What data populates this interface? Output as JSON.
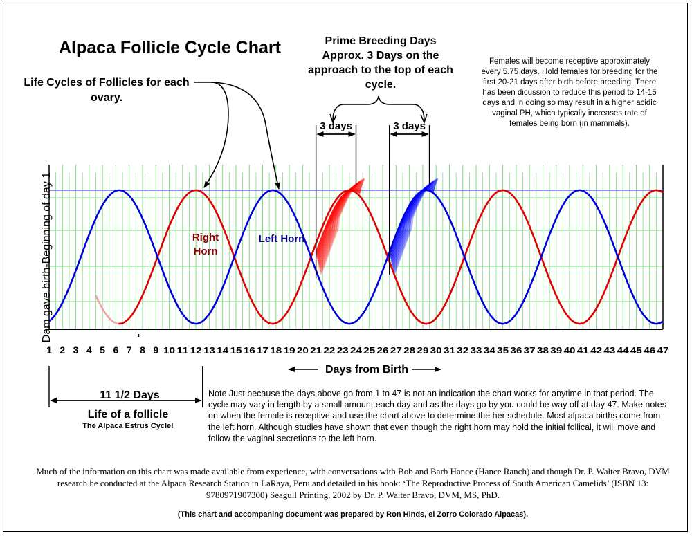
{
  "title": "Alpaca Follicle Cycle Chart",
  "annotations": {
    "life_cycles": "Life Cycles of Follicles for each ovary.",
    "prime_breeding": "Prime Breeding Days Approx. 3 Days on the approach to the top of each cycle.",
    "three_days": "3 days",
    "females_note": "Females will become receptive approximately every 5.75 days. Hold females for breeding for the first 20-21 days after birth before breeding. There has been dicussion to reduce this period to 14-15 days and in doing so may result in a higher acidic vaginal PH, which typically increases rate of females being born (in mammals).",
    "eleven_half_days": "11 1/2 Days",
    "life_of_follicle": "Life of a follicle",
    "estrus_cycle": "The Alpaca Estrus Cycle!",
    "note": "Note Just because the days above go from 1 to 47 is not an indication the chart works for anytime in that period. The cycle may vary in length by a small amount each day and as the days go by you could be way off at day 47. Make notes on when the female is receptive and use the chart above to determine the her schedule. Most alpaca births come from the left horn. Although studies have shown that even though the right horn may hold the initial follical, it will move and follow the vaginal secretions to the left horn.",
    "source": "Much of the information on this chart was made available from experience, with conversations with  Bob and Barb Hance (Hance Ranch) and though Dr. P. Walter Bravo, DVM research he conducted at the Alpaca Research Station in LaRaya, Peru and detailed in his book:  ‘The Reproductive Process of South American Camelids’ (ISBN 13: 9780971907300) Seagull Printing, 2002 by Dr. P. Walter Bravo, DVM, MS, PhD.",
    "prepared_by": "(This chart and accompaning document was prepared by Ron Hinds, el Zorro Colorado Alpacas)."
  },
  "chart_data": {
    "type": "line",
    "xlabel": "Days from Birth",
    "ylabel": "Dam gave birth-Beginning of day 1",
    "x_ticks": [
      1,
      2,
      3,
      4,
      5,
      6,
      7,
      8,
      9,
      10,
      11,
      12,
      13,
      14,
      15,
      16,
      17,
      18,
      19,
      20,
      21,
      22,
      23,
      24,
      25,
      26,
      27,
      28,
      29,
      30,
      31,
      32,
      33,
      34,
      35,
      36,
      37,
      38,
      39,
      40,
      41,
      42,
      43,
      44,
      45,
      46,
      47
    ],
    "xlim": [
      1,
      47
    ],
    "ylim": [
      0,
      1
    ],
    "period_days": 11.5,
    "grid": true,
    "series": [
      {
        "name": "Right Horn",
        "color": "#e00000",
        "label_color": "#8b0000",
        "peaks": [
          12,
          23.5,
          35,
          46.5
        ],
        "troughs": [
          6.25,
          17.75,
          29.25,
          40.75
        ],
        "start": 4.5
      },
      {
        "name": "Left Horn",
        "color": "#0000dd",
        "label_color": "#00008b",
        "peaks": [
          6.25,
          17.75,
          29.25,
          40.75
        ],
        "troughs": [
          1,
          12,
          23.5,
          35,
          46.5
        ],
        "start": 1
      }
    ],
    "prime_breeding_windows": [
      {
        "start": 21,
        "end": 24,
        "color": "#ff0000"
      },
      {
        "start": 26.5,
        "end": 29.5,
        "color": "#0000ff"
      }
    ],
    "follicle_life_span": {
      "start": 1,
      "end": 12.5
    }
  }
}
